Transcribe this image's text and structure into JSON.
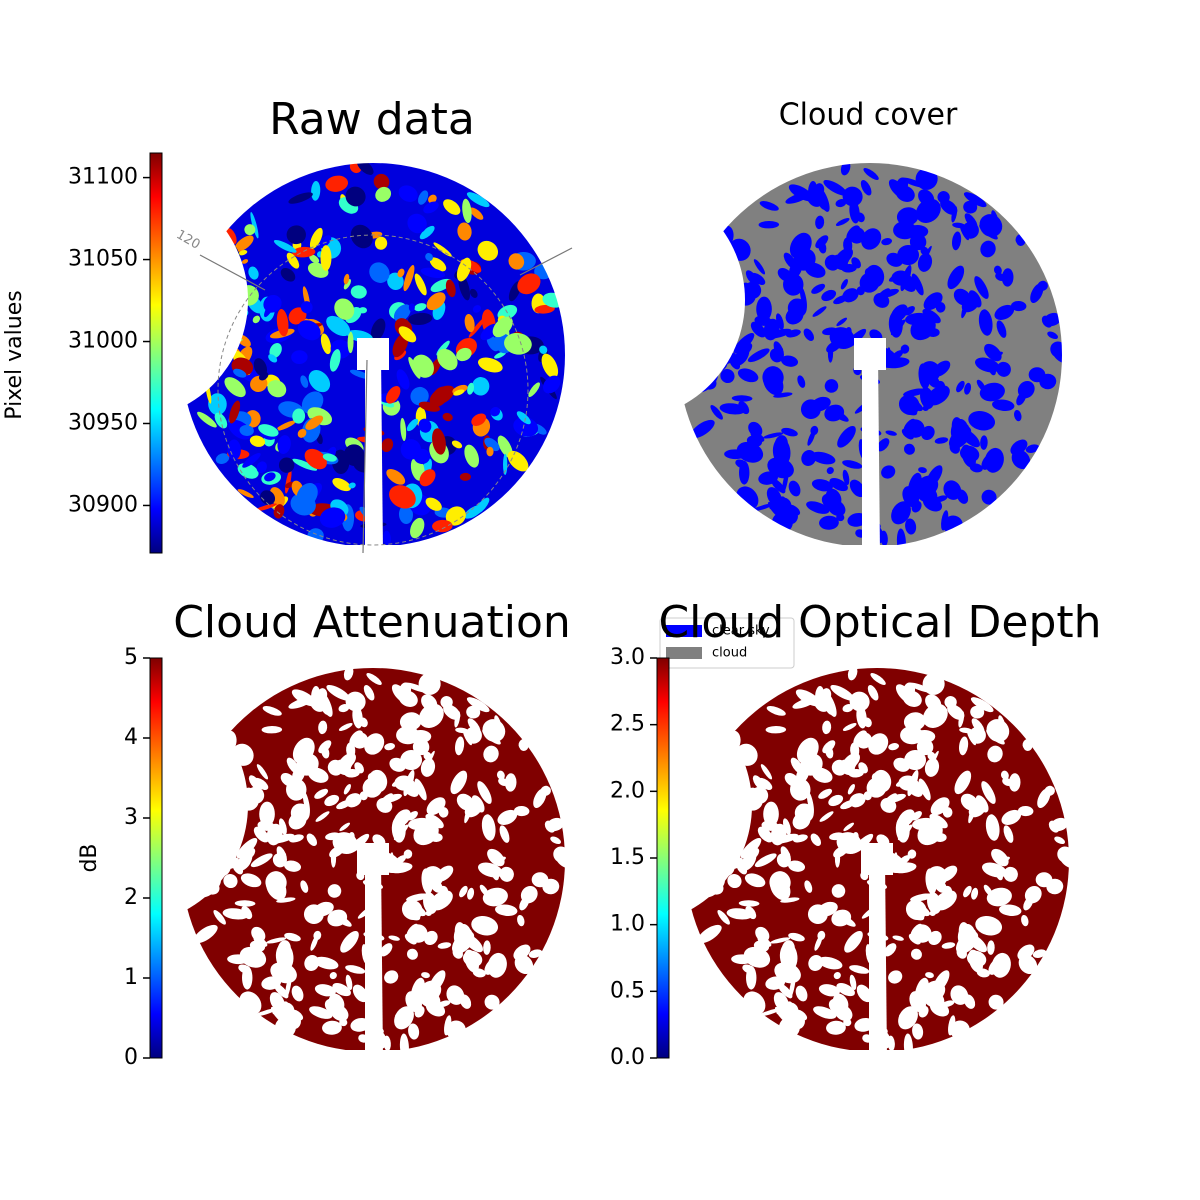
{
  "chart_data": [
    {
      "type": "image",
      "title": "Raw data",
      "ylabel": "Pixel values",
      "ylim": [
        30871,
        31115
      ],
      "yticks": [
        30900,
        30950,
        31000,
        31050,
        31100
      ],
      "colormap": "jet",
      "annotations": [
        "120"
      ]
    },
    {
      "type": "categorical-image",
      "title": "Cloud cover",
      "legend": [
        {
          "name": "clear sky",
          "color": "#0000ff"
        },
        {
          "name": "cloud",
          "color": "#808080"
        }
      ]
    },
    {
      "type": "image",
      "title": "Cloud Attenuation",
      "ylabel": "dB",
      "ylim": [
        0,
        5
      ],
      "yticks": [
        0,
        1,
        2,
        3,
        4,
        5
      ],
      "colormap": "jet",
      "color": "#800000"
    },
    {
      "type": "image",
      "title": "Cloud Optical Depth",
      "ylim": [
        0,
        3
      ],
      "yticks": [
        {
          "value": 0,
          "label": "0.0"
        },
        {
          "value": 0.5,
          "label": "0.5"
        },
        {
          "value": 1,
          "label": "1.0"
        },
        {
          "value": 1.5,
          "label": "1.5"
        },
        {
          "value": 2,
          "label": "2.0"
        },
        {
          "value": 2.5,
          "label": "2.5"
        },
        {
          "value": 3,
          "label": "3.0"
        }
      ],
      "colormap": "jet",
      "color": "#800000"
    }
  ]
}
